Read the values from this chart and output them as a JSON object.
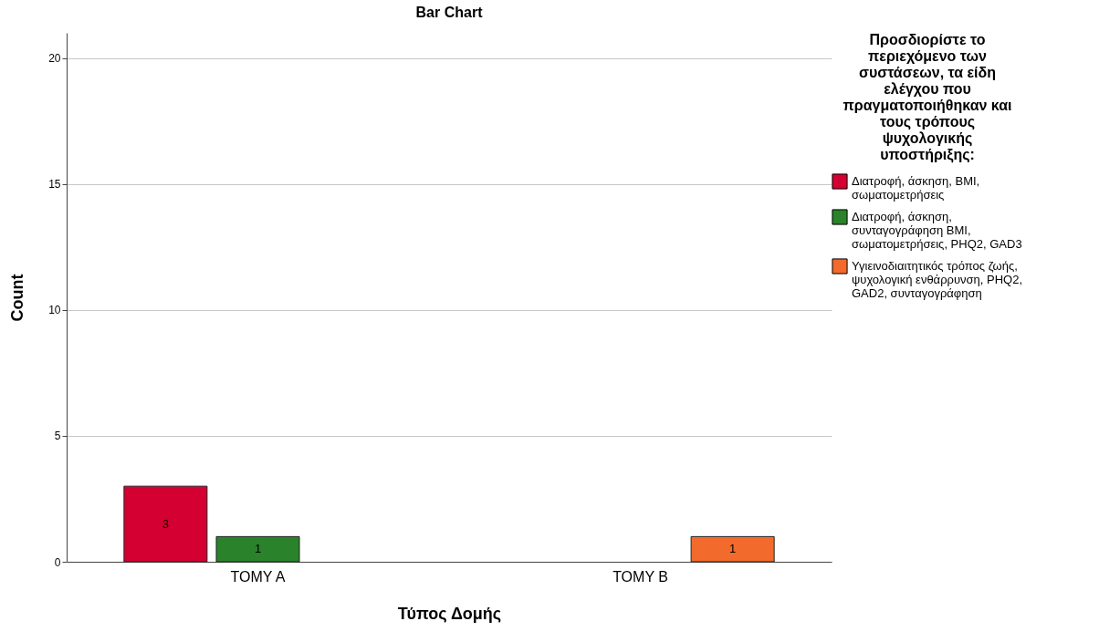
{
  "chart_data": {
    "type": "bar",
    "title": "Bar Chart",
    "xlabel": "Τύπος Δομής",
    "ylabel": "Count",
    "legend_title": "Προσδιορίστε το περιεχόμενο των συστάσεων, τα είδη ελέγχου που πραγματοποιήθηκαν και τους τρόπους ψυχολογικής υποστήριξης:",
    "categories": [
      "TOMY A",
      "TOMY B"
    ],
    "series": [
      {
        "name": "Διατροφή, άσκηση, BMI, σωματομετρήσεις",
        "color": "#d50032",
        "values": [
          3,
          null
        ]
      },
      {
        "name": "Διατροφή, άσκηση, συνταγογράφηση BMI, σωματομετρήσεις, PHQ2, GAD3",
        "color": "#2a832a",
        "values": [
          1,
          null
        ]
      },
      {
        "name": "Υγιεινοδιαιτητικός τρόπος ζωής, ψυχολογική ενθάρρυνση, PHQ2, GAD2, συνταγογράφηση",
        "color": "#f26a2c",
        "values": [
          null,
          1
        ]
      }
    ],
    "ylim": [
      0,
      21
    ],
    "yticks": [
      0,
      5,
      10,
      15,
      20
    ],
    "grid": "y",
    "legend": "right",
    "data_labels": true
  }
}
